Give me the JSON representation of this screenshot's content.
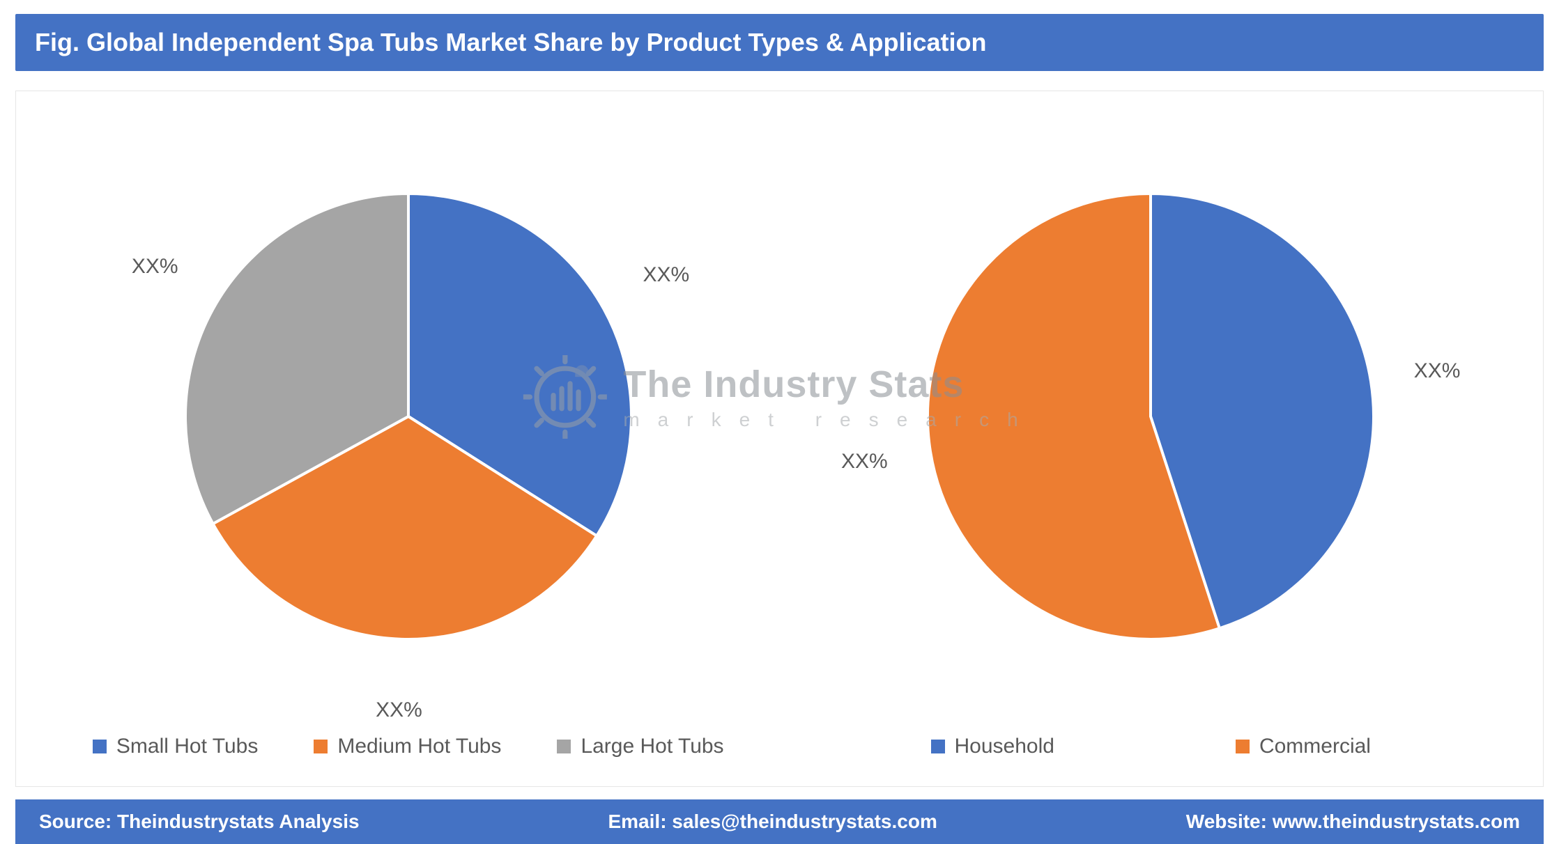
{
  "title": "Fig. Global Independent Spa Tubs Market Share by Product Types & Application",
  "title_bar": {
    "bg": "#4472c4",
    "fg": "#ffffff",
    "fontsize": 36,
    "fontweight": 700
  },
  "footer_bar": {
    "bg": "#4472c4",
    "fg": "#ffffff",
    "fontsize": 28,
    "fontweight": 700
  },
  "footer": {
    "source_label": "Source:",
    "source_value": "Theindustrystats Analysis",
    "email_label": "Email:",
    "email_value": "sales@theindustrystats.com",
    "website_label": "Website:",
    "website_value": "www.theindustrystats.com"
  },
  "watermark": {
    "title": "The Industry Stats",
    "subtitle": "market research",
    "icon_color": "#9aa0a6"
  },
  "background_color": "#ffffff",
  "panel_border_color": "#e6e6e6",
  "label_color": "#595959",
  "slice_stroke": "#ffffff",
  "slice_stroke_width": 4,
  "charts": [
    {
      "type": "pie",
      "radius": 320,
      "start_angle": -90,
      "slices": [
        {
          "label": "Small Hot Tubs",
          "value": 34,
          "color": "#4472c4",
          "data_label": "XX%"
        },
        {
          "label": "Medium Hot Tubs",
          "value": 33,
          "color": "#ed7d31",
          "data_label": "XX%"
        },
        {
          "label": "Large Hot Tubs",
          "value": 33,
          "color": "#a5a5a5",
          "data_label": "XX%"
        }
      ],
      "legend_gap": 80,
      "label_fontsize": 30,
      "label_offset": 1.32
    },
    {
      "type": "pie",
      "radius": 320,
      "start_angle": -90,
      "slices": [
        {
          "label": "Household",
          "value": 45,
          "color": "#4472c4",
          "data_label": "XX%"
        },
        {
          "label": "Commercial",
          "value": 55,
          "color": "#ed7d31",
          "data_label": "XX%"
        }
      ],
      "legend_gap": 260,
      "label_fontsize": 30,
      "label_offset": 1.3
    }
  ]
}
